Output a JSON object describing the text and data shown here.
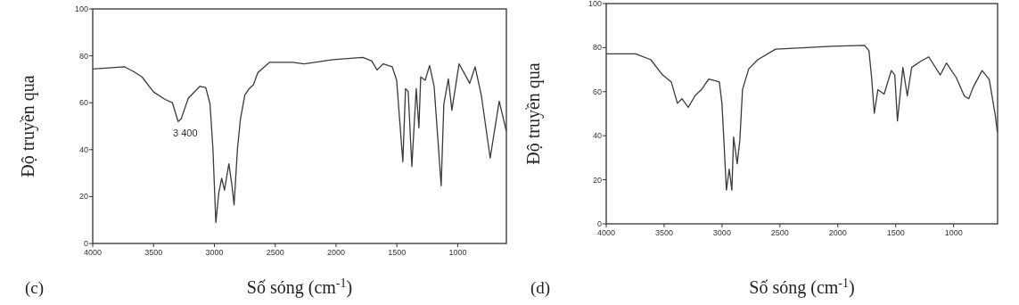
{
  "chart_data": [
    {
      "type": "line",
      "xlabel": "Số sóng (cm$^{-1}$)",
      "ylabel": "Độ truyền qua",
      "xlim": [
        4000,
        600
      ],
      "ylim": [
        0,
        100
      ],
      "xticks": [
        4000,
        3500,
        3000,
        2500,
        2000,
        1500,
        1000
      ],
      "yticks": [
        0,
        20,
        40,
        60,
        80,
        100
      ],
      "line_style": "solid",
      "annotations": [
        {
          "text": "3 400",
          "x": 3298,
          "y": 52
        },
        "(c)"
      ],
      "series": [
        {
          "color": "#3a3a3a",
          "x": [
            4000,
            3738,
            3667,
            3595,
            3500,
            3405,
            3345,
            3298,
            3274,
            3214,
            3119,
            3071,
            3036,
            3012,
            2988,
            2964,
            2940,
            2917,
            2881,
            2857,
            2838,
            2810,
            2786,
            2750,
            2714,
            2679,
            2643,
            2548,
            2357,
            2262,
            2024,
            1780,
            1707,
            1663,
            1612,
            1538,
            1502,
            1451,
            1429,
            1407,
            1377,
            1341,
            1319,
            1304,
            1267,
            1231,
            1194,
            1136,
            1114,
            1077,
            1048,
            989,
            901,
            857,
            806,
            733,
            659,
            601
          ],
          "values": [
            74.4,
            75.3,
            73.4,
            71,
            64.6,
            61.4,
            60,
            52,
            53,
            62,
            67,
            66.5,
            59.5,
            40.5,
            8.9,
            21.5,
            27.8,
            22.8,
            34,
            25.3,
            16.5,
            40.5,
            53,
            63.3,
            66,
            67.7,
            72.8,
            77.2,
            77.2,
            76.6,
            78.4,
            79.3,
            77.8,
            74,
            76.6,
            75.3,
            69.6,
            34.8,
            66,
            64.8,
            32.8,
            66,
            49.3,
            71,
            69.6,
            75.9,
            67,
            24.6,
            59.4,
            70.2,
            56.8,
            76.6,
            68.3,
            75.3,
            63.2,
            36.4,
            60.7,
            48
          ]
        }
      ]
    },
    {
      "type": "line",
      "xlabel": "Số sóng (cm$^{-1}$)",
      "ylabel": "Độ truyền qua",
      "xlim": [
        4000,
        620
      ],
      "ylim": [
        0,
        100
      ],
      "xticks": [
        4000,
        3500,
        3000,
        2500,
        2000,
        1500,
        1000
      ],
      "yticks": [
        0,
        20,
        40,
        60,
        80,
        100
      ],
      "line_style": "solid",
      "annotations": [
        "(d)"
      ],
      "series": [
        {
          "color": "#3a3a3a",
          "x": [
            4000,
            3746,
            3615,
            3515,
            3438,
            3385,
            3346,
            3292,
            3231,
            3177,
            3115,
            3023,
            3000,
            2962,
            2938,
            2915,
            2900,
            2869,
            2846,
            2823,
            2769,
            2692,
            2538,
            2308,
            2054,
            1769,
            1731,
            1708,
            1685,
            1654,
            1600,
            1538,
            1508,
            1485,
            1438,
            1400,
            1362,
            1285,
            1215,
            1115,
            1062,
            977,
            908,
            869,
            831,
            754,
            692,
            638,
            623
          ],
          "values": [
            77.2,
            77.2,
            74.5,
            67.7,
            64.4,
            54.7,
            56.8,
            52.9,
            58.3,
            61,
            65.7,
            64.4,
            54.3,
            15.3,
            24.8,
            15.3,
            39.4,
            27.3,
            38,
            61,
            70.4,
            74.5,
            79.3,
            79.9,
            80.6,
            81,
            78.6,
            66.4,
            50.2,
            60.9,
            58.9,
            69.6,
            67.6,
            46.7,
            71,
            58.1,
            71,
            73.8,
            75.8,
            67.6,
            73,
            66.4,
            58.1,
            56.8,
            62,
            69.6,
            65.5,
            48.6,
            41.8
          ]
        }
      ]
    }
  ]
}
